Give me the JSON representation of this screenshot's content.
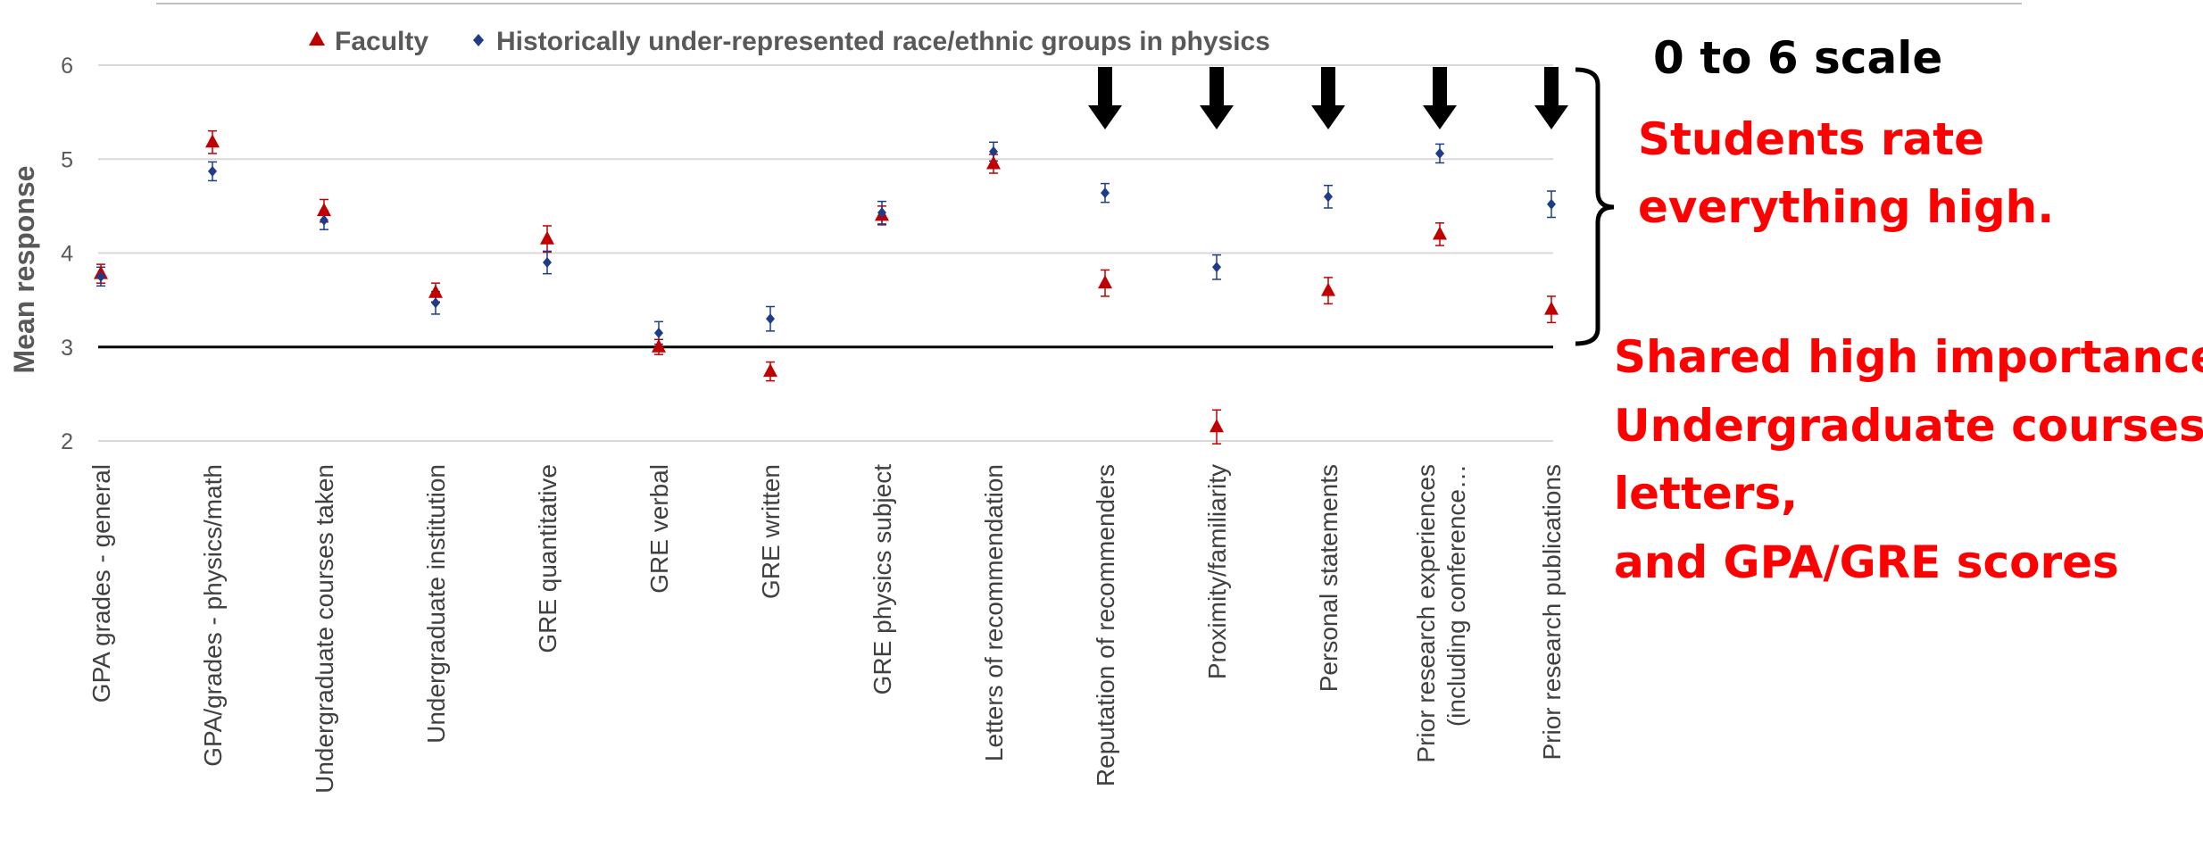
{
  "chart_data": {
    "type": "scatter",
    "ylabel": "Mean response",
    "ylim": [
      2,
      6
    ],
    "yticks": [
      "2",
      "3",
      "4",
      "5",
      "6"
    ],
    "grid": true,
    "legend_position": "top",
    "categories": [
      "GPA grades - general",
      "GPA/grades - physics/math",
      "Undergraduate courses taken",
      "Undergraduate institution",
      "GRE quantitative",
      "GRE verbal",
      "GRE written",
      "GRE physics subject",
      "Letters of recommendation",
      "Reputation of recommenders",
      "Proximity/familiarity",
      "Personal statements",
      "Prior research experiences (including conference…",
      "Prior research publications"
    ],
    "series": [
      {
        "name": "Faculty",
        "marker": "triangle",
        "color": "#c00000",
        "values": [
          3.78,
          5.18,
          4.45,
          3.58,
          4.15,
          3.0,
          2.74,
          4.4,
          4.95,
          3.68,
          2.15,
          3.6,
          4.2,
          3.4
        ],
        "errors": [
          0.1,
          0.12,
          0.12,
          0.1,
          0.14,
          0.08,
          0.1,
          0.1,
          0.1,
          0.14,
          0.18,
          0.14,
          0.12,
          0.14
        ]
      },
      {
        "name": "Historically under-represented race/ethnic groups in physics",
        "marker": "diamond",
        "color": "#1f3c88",
        "values": [
          3.75,
          4.87,
          4.35,
          3.47,
          3.9,
          3.15,
          3.3,
          4.43,
          5.08,
          4.64,
          3.85,
          4.6,
          5.06,
          4.52
        ],
        "errors": [
          0.1,
          0.1,
          0.1,
          0.12,
          0.12,
          0.12,
          0.13,
          0.12,
          0.1,
          0.1,
          0.13,
          0.12,
          0.1,
          0.14
        ]
      }
    ],
    "reference_line": 3,
    "arrow_categories": [
      9,
      10,
      11,
      12,
      13
    ]
  },
  "annotations": {
    "scale_note": "0 to 6 scale",
    "students_line1": "Students rate",
    "students_line2": "everything high.",
    "shared_line1": "Shared high importance:",
    "shared_line2": "Undergraduate courses,",
    "shared_line3": "letters,",
    "shared_line4": "and GPA/GRE scores"
  },
  "colors": {
    "annotation_red": "#ff0000",
    "faculty": "#c00000",
    "urm": "#1f3c88"
  }
}
